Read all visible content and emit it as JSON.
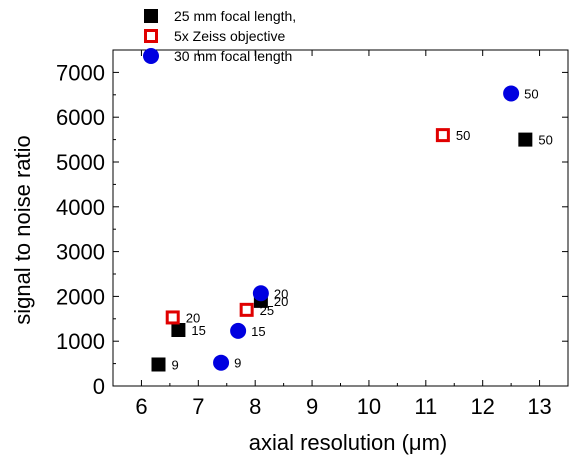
{
  "chart_data": {
    "type": "scatter",
    "xlabel": "axial resolution (μm)",
    "ylabel": "signal to noise ratio",
    "xlim": [
      5.5,
      13.5
    ],
    "ylim": [
      0,
      7500
    ],
    "xticks": [
      6,
      7,
      8,
      9,
      10,
      11,
      12,
      13
    ],
    "yticks": [
      0,
      1000,
      2000,
      3000,
      4000,
      5000,
      6000,
      7000
    ],
    "x_tick_labels": [
      "6",
      "7",
      "8",
      "9",
      "10",
      "11",
      "12",
      "13"
    ],
    "y_tick_labels": [
      "0",
      "1000",
      "2000",
      "3000",
      "4000",
      "5000",
      "6000",
      "7000"
    ],
    "grid": false,
    "legend_position": "top-left",
    "series": [
      {
        "name": "25 mm focal length,",
        "marker": "filled-square",
        "color": "#000000",
        "points": [
          {
            "x": 6.3,
            "y": 480,
            "label": "9"
          },
          {
            "x": 6.65,
            "y": 1250,
            "label": "15"
          },
          {
            "x": 8.1,
            "y": 1900,
            "label": "20"
          },
          {
            "x": 12.75,
            "y": 5500,
            "label": "50"
          }
        ]
      },
      {
        "name": "5x Zeiss objective",
        "marker": "open-square",
        "color": "#e00000",
        "points": [
          {
            "x": 6.55,
            "y": 1530,
            "label": "20"
          },
          {
            "x": 7.85,
            "y": 1700,
            "label": "25"
          },
          {
            "x": 11.3,
            "y": 5600,
            "label": "50"
          }
        ]
      },
      {
        "name": "30 mm focal length",
        "marker": "filled-circle",
        "color": "#0000e0",
        "points": [
          {
            "x": 7.4,
            "y": 520,
            "label": "9"
          },
          {
            "x": 7.7,
            "y": 1230,
            "label": "15"
          },
          {
            "x": 8.1,
            "y": 2070,
            "label": "20"
          },
          {
            "x": 12.5,
            "y": 6530,
            "label": "50"
          }
        ]
      }
    ]
  }
}
